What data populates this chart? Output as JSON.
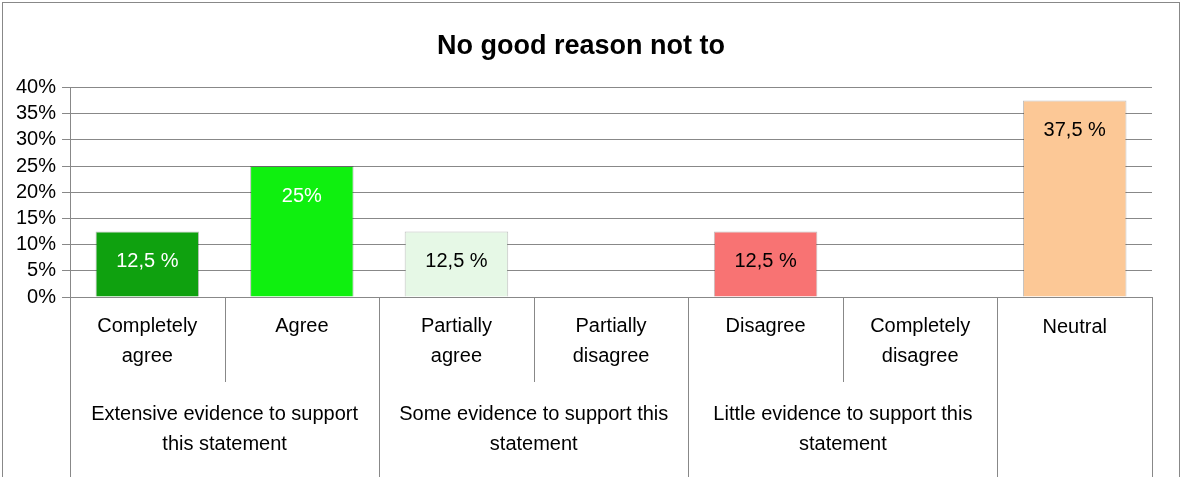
{
  "chart_data": {
    "type": "bar",
    "title": "No good reason not to",
    "categories": [
      "Completely agree",
      "Agree",
      "Partially agree",
      "Partially disagree",
      "Disagree",
      "Completely disagree",
      null
    ],
    "values": [
      12.5,
      25,
      12.5,
      0,
      12.5,
      0,
      37.5
    ],
    "colors": [
      "#0fa10f",
      "#0ff00f",
      "#e6f8e6",
      "#cccccc",
      "#f87373",
      "#cccccc",
      "#fcc896"
    ],
    "value_labels": [
      "12,5 %",
      "25%",
      "12,5 %",
      null,
      "12,5 %",
      null,
      "37,5 %"
    ],
    "ylim": [
      0,
      40
    ],
    "yticks": [
      {
        "value": 0,
        "label": "0%"
      },
      {
        "value": 5,
        "label": "5%"
      },
      {
        "value": 10,
        "label": "10%"
      },
      {
        "value": 15,
        "label": "15%"
      },
      {
        "value": 20,
        "label": "20%"
      },
      {
        "value": 25,
        "label": "25%"
      },
      {
        "value": 30,
        "label": "30%"
      },
      {
        "value": 35,
        "label": "35%"
      },
      {
        "value": 40,
        "label": "40%"
      }
    ],
    "grid": "y",
    "legend": false,
    "annotations": [
      "Extensive evidence to support this statement",
      "Some evidence to support this statement",
      "Little evidence to support this statement",
      "Neutral"
    ]
  }
}
